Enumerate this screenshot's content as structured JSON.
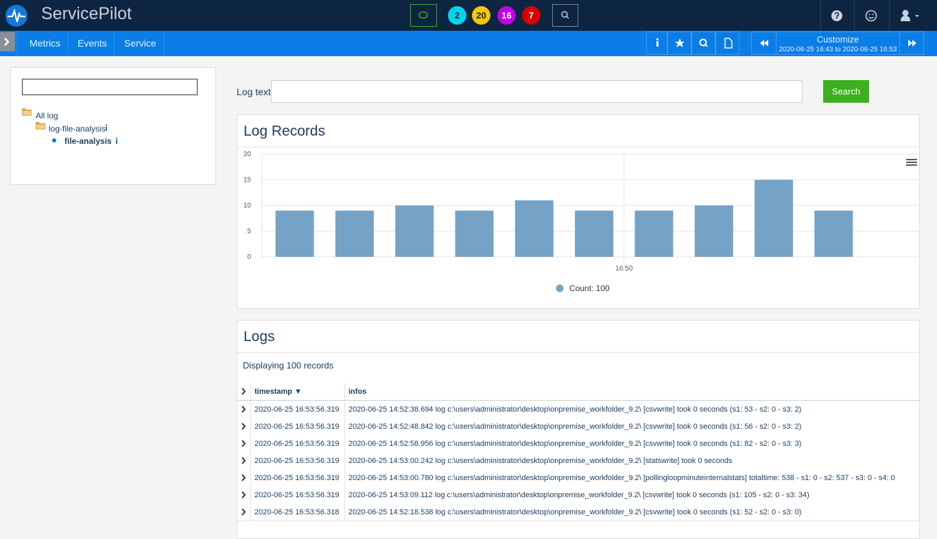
{
  "header": {
    "brand": "ServicePilot",
    "badges": [
      "2",
      "20",
      "16",
      "7"
    ]
  },
  "nav": {
    "items": [
      "Metrics",
      "Events",
      "Service"
    ],
    "customize": "Customize",
    "period": "2020-06-25 16:43 to 2020-06-25 16:53"
  },
  "tree": {
    "nodes": [
      "All log",
      "log-file-analysis",
      "file-analysis"
    ]
  },
  "search": {
    "label": "Log text",
    "button": "Search"
  },
  "log_records": {
    "title": "Log Records",
    "chart_data": {
      "type": "bar",
      "categories": [
        null,
        null,
        null,
        null,
        null,
        null,
        null,
        null,
        null,
        null
      ],
      "values": [
        9,
        9,
        10,
        9,
        11,
        9,
        9,
        10,
        15,
        9
      ],
      "color": "#75a3c8",
      "ylim": [
        0,
        20
      ],
      "yticks": [
        0,
        5,
        10,
        15,
        20
      ],
      "grid": true,
      "x_tick_label": "16:50",
      "legend": "Count: 100"
    }
  },
  "logs": {
    "title": "Logs",
    "summary": "Displaying 100 records",
    "columns": [
      "timestamp ▼",
      "infos"
    ],
    "rows": [
      [
        "2020-06-25 16:53:56.319",
        "2020-06-25 14:52:38.694 log c:\\users\\administrator\\desktop\\onpremise_workfolder_9.2\\ [csvwrite] took 0 seconds (s1: 53 - s2: 0 - s3: 2)"
      ],
      [
        "2020-06-25 16:53:56.319",
        "2020-06-25 14:52:48.842 log c:\\users\\administrator\\desktop\\onpremise_workfolder_9.2\\ [csvwrite] took 0 seconds (s1: 56 - s2: 0 - s3: 2)"
      ],
      [
        "2020-06-25 16:53:56.319",
        "2020-06-25 14:52:58.956 log c:\\users\\administrator\\desktop\\onpremise_workfolder_9.2\\ [csvwrite] took 0 seconds (s1: 82 - s2: 0 - s3: 3)"
      ],
      [
        "2020-06-25 16:53:56.319",
        "2020-06-25 14:53:00.242 log c:\\users\\administrator\\desktop\\onpremise_workfolder_9.2\\ [statswrite] took 0 seconds"
      ],
      [
        "2020-06-25 16:53:56.319",
        "2020-06-25 14:53:00.780 log c:\\users\\administrator\\desktop\\onpremise_workfolder_9.2\\ [pollingloopminuteinternalstats] totaltime: 538 - s1: 0 - s2: 537 - s3: 0 - s4: 0"
      ],
      [
        "2020-06-25 16:53:56.319",
        "2020-06-25 14:53:09.112 log c:\\users\\administrator\\desktop\\onpremise_workfolder_9.2\\ [csvwrite] took 0 seconds (s1: 105 - s2: 0 - s3: 34)"
      ],
      [
        "2020-06-25 16:53:56.318",
        "2020-06-25 14:52:18.538 log c:\\users\\administrator\\desktop\\onpremise_workfolder_9.2\\ [csvwrite] took 0 seconds (s1: 52 - s2: 0 - s3: 0)"
      ]
    ]
  }
}
